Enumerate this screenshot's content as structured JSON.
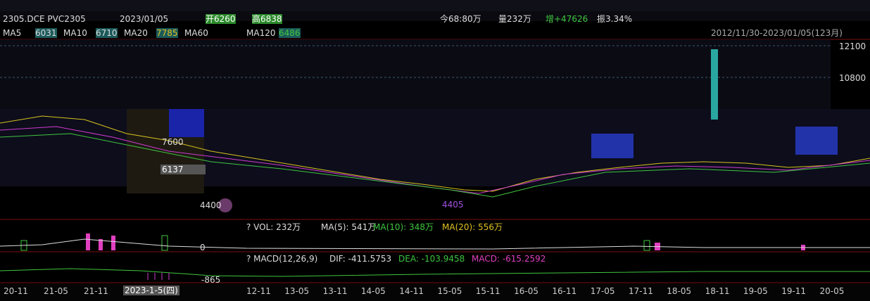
{
  "header": {
    "symbol": "2305.DCE PVC2305",
    "date": "2023/01/05",
    "high": "高6838",
    "open": "开6260",
    "amount": "今68:80万",
    "volume": "量232万",
    "increase": "增+47626",
    "amplitude": "振3.34%"
  },
  "ma": {
    "labels": [
      "MA5",
      "MA10",
      "MA20",
      "MA60",
      "MA120"
    ],
    "values": [
      "6031",
      "6710",
      "7785",
      "",
      "6486"
    ],
    "range": "2012/11/30-2023/01/05(123月)"
  },
  "price_labels": [
    "12100",
    "10800",
    "7600",
    "6137",
    "4400",
    "4405"
  ],
  "volume": {
    "title": "? VOL: 232万",
    "ma5": "MA(5): 541万",
    "ma10": "MA(10): 348万",
    "ma20": "MA(20): 556万",
    "zero": "0"
  },
  "macd": {
    "title": "? MACD(12,26,9)",
    "dif": "DIF: -411.5753",
    "dea": "DEA: -103.9458",
    "macd": "MACD: -615.2592",
    "low": "-865"
  },
  "x_axis": {
    "left": [
      "20-11",
      "21-05",
      "21-11"
    ],
    "cursor": "2023-1-5(四)",
    "right": [
      "12-11",
      "13-05",
      "13-11",
      "14-05",
      "14-11",
      "15-05",
      "15-11",
      "16-05",
      "16-11",
      "17-05",
      "17-11",
      "18-05",
      "18-11",
      "19-05",
      "19-11",
      "20-05"
    ]
  }
}
